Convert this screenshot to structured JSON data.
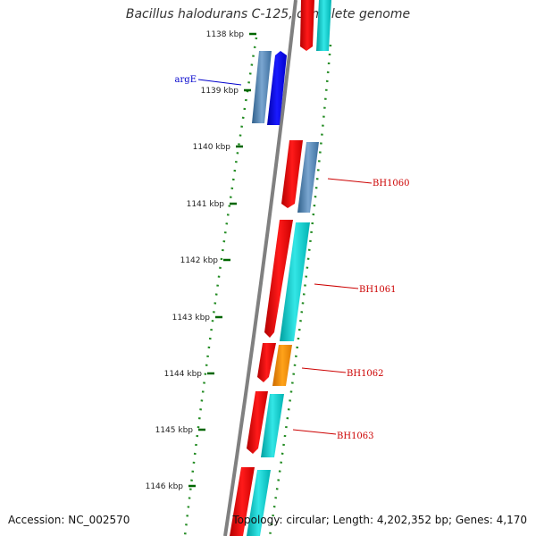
{
  "title": "Bacillus halodurans C-125, complete genome",
  "ticks": [
    {
      "label": "1138 kbp"
    },
    {
      "label": "1139 kbp"
    },
    {
      "label": "1140 kbp"
    },
    {
      "label": "1141 kbp"
    },
    {
      "label": "1142 kbp"
    },
    {
      "label": "1143 kbp"
    },
    {
      "label": "1144 kbp"
    },
    {
      "label": "1145 kbp"
    },
    {
      "label": "1146 kbp"
    }
  ],
  "genes": [
    {
      "name": "argE",
      "color": "#0000cc"
    },
    {
      "name": "BH1060",
      "color": "#cc0000"
    },
    {
      "name": "BH1061",
      "color": "#cc0000"
    },
    {
      "name": "BH1062",
      "color": "#cc0000"
    },
    {
      "name": "BH1063",
      "color": "#cc0000"
    }
  ],
  "colors": {
    "red": "#ff0000",
    "cyan": "#00cccc",
    "steel_blue": "#4682b4",
    "blue": "#0000ff",
    "orange": "#ff8c00",
    "tick_green": "#006600",
    "backbone_gray": "#808080"
  },
  "footer": {
    "accession": "Accession: NC_002570",
    "summary": "Topology: circular; Length: 4,202,352 bp; Genes: 4,170"
  }
}
